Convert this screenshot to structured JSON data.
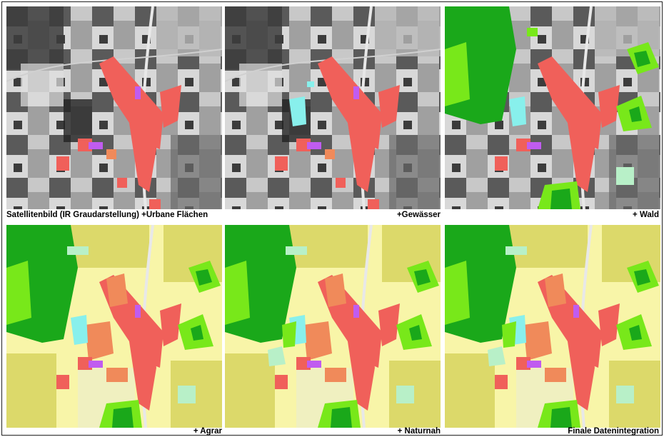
{
  "figure": {
    "captions": {
      "satellite": "Satellitenbild (IR Graudarstellung)",
      "urban": "+Urbane Flächen",
      "water": "+Gewässer",
      "forest": "+ Wald",
      "agriculture": "+ Agrar",
      "seminatural": "+ Naturnah",
      "final": "Finale Datenintegration"
    },
    "colors": {
      "urban": "#f0605a",
      "urban_alt": "#f08a5a",
      "water": "#88f0ec",
      "forest_dark": "#1aa81a",
      "forest_light": "#78e81a",
      "agri_light": "#f8f5a8",
      "agri_dark": "#dcd96a",
      "seminatural": "#b8f0c8",
      "special": "#c05cf0",
      "road": "#e8e8e8"
    }
  }
}
